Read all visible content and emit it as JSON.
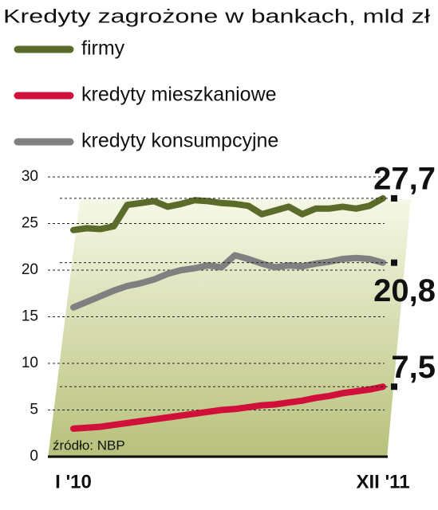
{
  "chart_data": {
    "type": "line",
    "title": "Kredyty zagrożone w bankach, mld zł",
    "source": "źródło: NBP",
    "categories": [
      "I '10",
      null,
      null,
      null,
      null,
      null,
      null,
      null,
      null,
      null,
      null,
      null,
      null,
      null,
      null,
      null,
      null,
      null,
      null,
      null,
      null,
      null,
      null,
      "XII '11"
    ],
    "series": [
      {
        "name": "firmy",
        "color": "#5a6b2a",
        "values": [
          24.3,
          24.5,
          24.4,
          24.7,
          27.0,
          27.2,
          27.4,
          26.8,
          27.1,
          27.5,
          27.4,
          27.2,
          27.1,
          26.9,
          26.0,
          26.4,
          26.8,
          26.0,
          26.6,
          26.6,
          26.8,
          26.6,
          26.9,
          27.7
        ],
        "value_labels": [
          null,
          null,
          null,
          null,
          null,
          null,
          null,
          null,
          null,
          null,
          null,
          null,
          null,
          null,
          null,
          null,
          null,
          null,
          null,
          null,
          null,
          null,
          null,
          "27,7"
        ]
      },
      {
        "name": "kredyty mieszkaniowe",
        "color": "#d0103a",
        "values": [
          3.0,
          3.1,
          3.2,
          3.4,
          3.6,
          3.8,
          4.0,
          4.2,
          4.4,
          4.6,
          4.8,
          5.0,
          5.1,
          5.3,
          5.5,
          5.6,
          5.8,
          6.0,
          6.3,
          6.5,
          6.8,
          7.0,
          7.2,
          7.5
        ],
        "value_labels": [
          null,
          null,
          null,
          null,
          null,
          null,
          null,
          null,
          null,
          null,
          null,
          null,
          null,
          null,
          null,
          null,
          null,
          null,
          null,
          null,
          null,
          null,
          null,
          "7,5"
        ]
      },
      {
        "name": "kredyty konsumpcyjne",
        "color": "#808080",
        "values": [
          16.0,
          16.6,
          17.2,
          17.8,
          18.3,
          18.6,
          19.0,
          19.6,
          20.0,
          20.2,
          20.5,
          20.3,
          21.6,
          21.2,
          20.7,
          20.3,
          20.5,
          20.4,
          20.7,
          20.9,
          21.2,
          21.3,
          21.2,
          20.8
        ],
        "value_labels": [
          null,
          null,
          null,
          null,
          null,
          null,
          null,
          null,
          null,
          null,
          null,
          null,
          null,
          null,
          null,
          null,
          null,
          null,
          null,
          null,
          null,
          null,
          null,
          "20,8"
        ]
      }
    ],
    "ylim": [
      0,
      30
    ],
    "yticks": [
      0,
      5,
      10,
      15,
      20,
      25,
      30
    ],
    "grid": true
  }
}
